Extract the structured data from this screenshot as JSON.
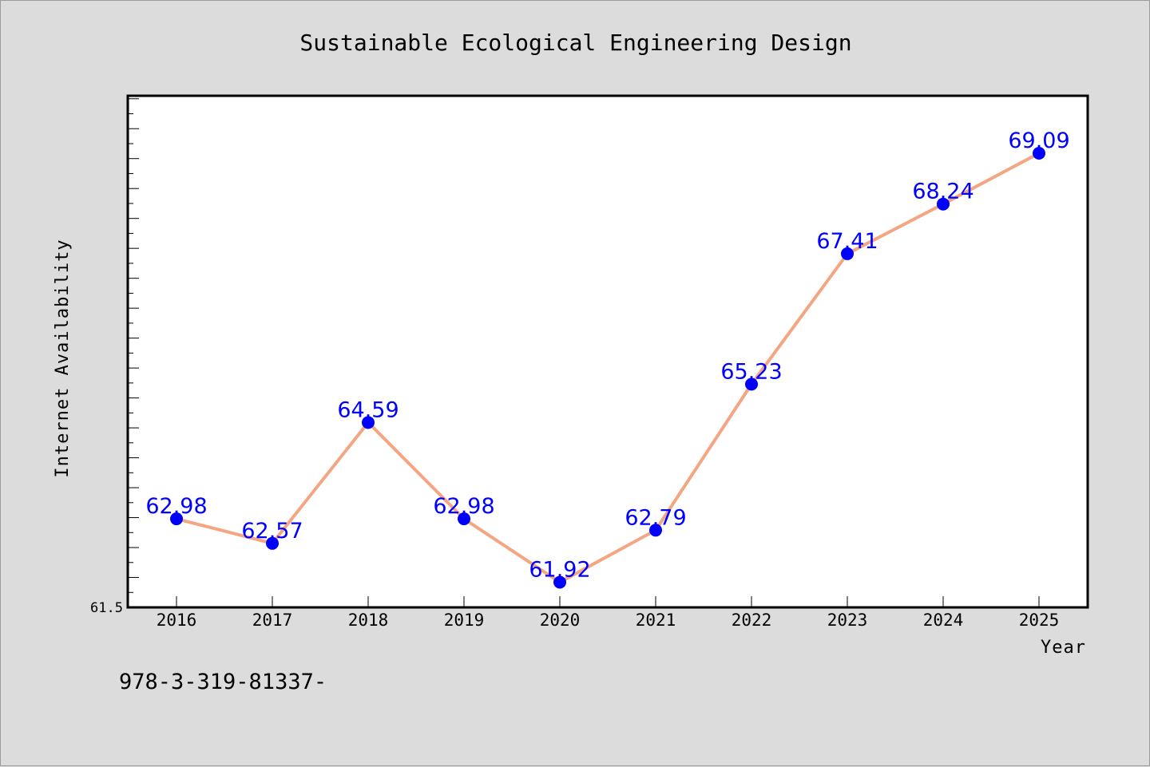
{
  "chart_data": {
    "type": "line",
    "title": "Sustainable Ecological Engineering Design",
    "xlabel": "Year",
    "ylabel": "Internet Availability",
    "categories": [
      "2016",
      "2017",
      "2018",
      "2019",
      "2020",
      "2021",
      "2022",
      "2023",
      "2024",
      "2025"
    ],
    "values": [
      62.98,
      62.57,
      64.59,
      62.98,
      61.92,
      62.79,
      65.23,
      67.41,
      68.24,
      69.09
    ],
    "data_labels": [
      "62.98",
      "62.57",
      "64.59",
      "62.98",
      "61.92",
      "62.79",
      "65.23",
      "67.41",
      "68.24",
      "69.09"
    ],
    "ylim": [
      61.5,
      70.05
    ],
    "y_min_label": "61.5",
    "grid": false,
    "legend": "none",
    "line_color": "#f4a582",
    "marker_color": "#0000ff",
    "label_color": "#0000ff",
    "background_color": "#dcdcdc",
    "plot_background": "#ffffff"
  },
  "footer": {
    "text": "978-3-319-81337-"
  }
}
